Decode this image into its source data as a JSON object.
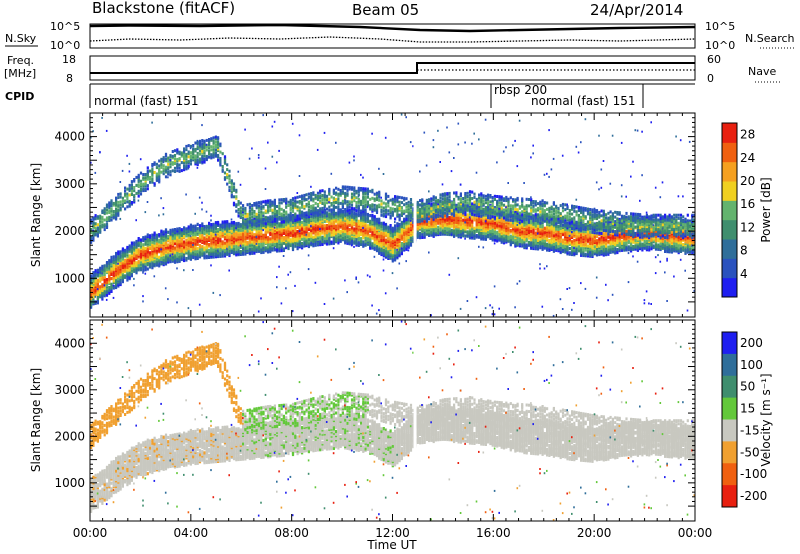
{
  "header": {
    "station": "Blackstone (fitACF)",
    "beam": "Beam 05",
    "date": "24/Apr/2014"
  },
  "top_panels": {
    "nsky_label": "N.Sky",
    "nsearch_label": "N.Search",
    "noise_ticks": [
      "10^5",
      "10^0"
    ],
    "freq_label_1": "Freq.",
    "freq_label_2": "[MHz]",
    "freq_ticks": [
      "18",
      "8"
    ],
    "nave_label": "Nave",
    "nave_ticks": [
      "60",
      "0"
    ],
    "cpid_label": "CPID",
    "cpid_segments": [
      "normal (fast) 151",
      "rbsp 200",
      "normal (fast) 151"
    ]
  },
  "x_axis": {
    "label": "Time UT",
    "ticks": [
      "00:00",
      "04:00",
      "08:00",
      "12:00",
      "16:00",
      "20:00",
      "00:00"
    ]
  },
  "power_panel": {
    "ylabel": "Slant Range [km]",
    "yticks": [
      "1000",
      "2000",
      "3000",
      "4000"
    ],
    "colorbar_label": "Power [dB]",
    "colorbar_ticks": [
      "4",
      "8",
      "12",
      "16",
      "20",
      "24",
      "28"
    ]
  },
  "velocity_panel": {
    "ylabel": "Slant Range [km]",
    "yticks": [
      "1000",
      "2000",
      "3000",
      "4000"
    ],
    "colorbar_label": "Velocity [m s⁻¹]",
    "colorbar_ticks": [
      "200",
      "100",
      "50",
      "15",
      "-15",
      "-50",
      "-100",
      "-200"
    ]
  },
  "chart_data": [
    {
      "type": "heatmap",
      "title": "Blackstone (fitACF) Beam 05 24/Apr/2014",
      "xlabel": "Time UT",
      "ylabel": "Slant Range [km]",
      "xlim": [
        0,
        24
      ],
      "ylim": [
        180,
        4500
      ],
      "colorbar": {
        "label": "Power [dB]",
        "range": [
          0,
          30
        ],
        "colors": [
          "#1f1ff0",
          "#2a52be",
          "#2f6e9a",
          "#3f8e6e",
          "#63b36e",
          "#f0d020",
          "#f5a020",
          "#f06010",
          "#e82010"
        ]
      },
      "bands": [
        {
          "name": "main echo band",
          "time": [
            0,
            1,
            2,
            3,
            4,
            5,
            6,
            7,
            8,
            9,
            10,
            11,
            12,
            13,
            14,
            15,
            16,
            17,
            18,
            19,
            20,
            21,
            22,
            23,
            24
          ],
          "range_km": [
            700,
            1150,
            1500,
            1650,
            1750,
            1800,
            1850,
            1900,
            1950,
            2050,
            2100,
            2000,
            1700,
            2200,
            2250,
            2200,
            2150,
            2000,
            1950,
            1850,
            1800,
            1900,
            1950,
            1900,
            1850
          ],
          "peak_db": 28
        },
        {
          "name": "upper echo band",
          "time": [
            0,
            1,
            2,
            3,
            4,
            5,
            6,
            7,
            8,
            9,
            10,
            11,
            12,
            13,
            14,
            15,
            16,
            17,
            18,
            19,
            20,
            21,
            22,
            23,
            24
          ],
          "range_km": [
            2000,
            2500,
            3000,
            3400,
            3600,
            3800,
            2300,
            2400,
            2450,
            2600,
            2700,
            2650,
            2500,
            2400,
            2550,
            2600,
            2500,
            2450,
            2400,
            2300,
            2200,
            2150,
            2100,
            2100,
            2100
          ],
          "peak_db": 16
        }
      ]
    },
    {
      "type": "heatmap",
      "title": "",
      "xlabel": "Time UT",
      "ylabel": "Slant Range [km]",
      "xlim": [
        0,
        24
      ],
      "ylim": [
        180,
        4500
      ],
      "colorbar": {
        "label": "Velocity [m s⁻¹]",
        "levels": [
          200,
          100,
          50,
          15,
          -15,
          -50,
          -100,
          -200
        ],
        "colors": [
          "#1f1ff0",
          "#2f6e9a",
          "#3f8e6e",
          "#63c83a",
          "#c8c8c0",
          "#f0a030",
          "#f06010",
          "#e82010"
        ]
      },
      "regions": [
        {
          "name": "ground scatter",
          "velocity_ms": 0
        },
        {
          "name": "away drift 00-06 UT",
          "velocity_ms": -50
        },
        {
          "name": "toward drift 06-12 UT",
          "velocity_ms": 50
        }
      ]
    }
  ]
}
